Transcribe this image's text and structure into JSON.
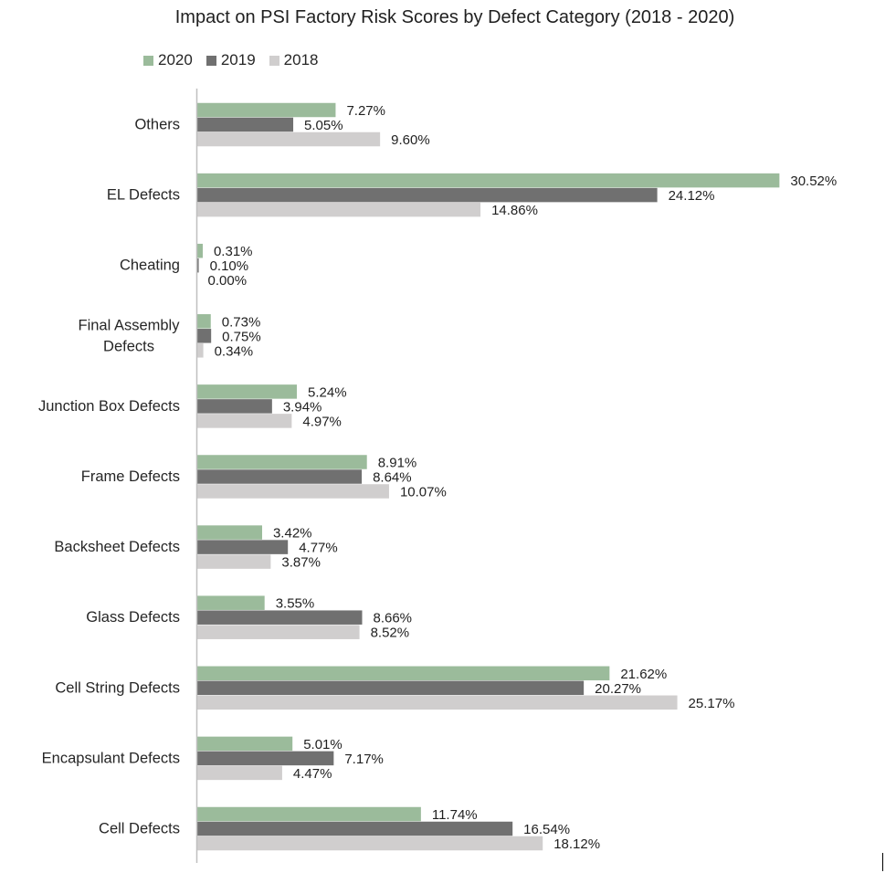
{
  "chart_data": {
    "type": "bar",
    "orientation": "horizontal",
    "title": "Impact on PSI Factory Risk Scores by Defect Category (2018 - 2020)",
    "xlabel": "",
    "ylabel": "",
    "xlim": [
      0,
      33
    ],
    "grid": false,
    "legend_position": "top-left",
    "categories": [
      "Others",
      "EL Defects",
      "Cheating",
      "Final Assembly Defects",
      "Junction Box Defects",
      "Frame Defects",
      "Backsheet Defects",
      "Glass Defects",
      "Cell String Defects",
      "Encapsulant Defects",
      "Cell Defects"
    ],
    "category_lines": [
      [
        "Others"
      ],
      [
        "EL Defects"
      ],
      [
        "Cheating"
      ],
      [
        "Final Assembly",
        "Defects"
      ],
      [
        "Junction Box Defects"
      ],
      [
        "Frame Defects"
      ],
      [
        "Backsheet Defects"
      ],
      [
        "Glass Defects"
      ],
      [
        "Cell String Defects"
      ],
      [
        "Encapsulant Defects"
      ],
      [
        "Cell Defects"
      ]
    ],
    "series": [
      {
        "name": "2020",
        "color": "#9bbb9b",
        "values": [
          7.27,
          30.52,
          0.31,
          0.73,
          5.24,
          8.91,
          3.42,
          3.55,
          21.62,
          5.01,
          11.74
        ],
        "labels": [
          "7.27%",
          "30.52%",
          "0.31%",
          "0.73%",
          "5.24%",
          "8.91%",
          "3.42%",
          "3.55%",
          "21.62%",
          "5.01%",
          "11.74%"
        ]
      },
      {
        "name": "2019",
        "color": "#707070",
        "values": [
          5.05,
          24.12,
          0.1,
          0.75,
          3.94,
          8.64,
          4.77,
          8.66,
          20.27,
          7.17,
          16.54
        ],
        "labels": [
          "5.05%",
          "24.12%",
          "0.10%",
          "0.75%",
          "3.94%",
          "8.64%",
          "4.77%",
          "8.66%",
          "20.27%",
          "7.17%",
          "16.54%"
        ]
      },
      {
        "name": "2018",
        "color": "#d0cece",
        "values": [
          9.6,
          14.86,
          0.0,
          0.34,
          4.97,
          10.07,
          3.87,
          8.52,
          25.17,
          4.47,
          18.12
        ],
        "labels": [
          "9.60%",
          "14.86%",
          "0.00%",
          "0.34%",
          "4.97%",
          "10.07%",
          "3.87%",
          "8.52%",
          "25.17%",
          "4.47%",
          "18.12%"
        ]
      }
    ],
    "axis_color": "#bfbfbf"
  }
}
